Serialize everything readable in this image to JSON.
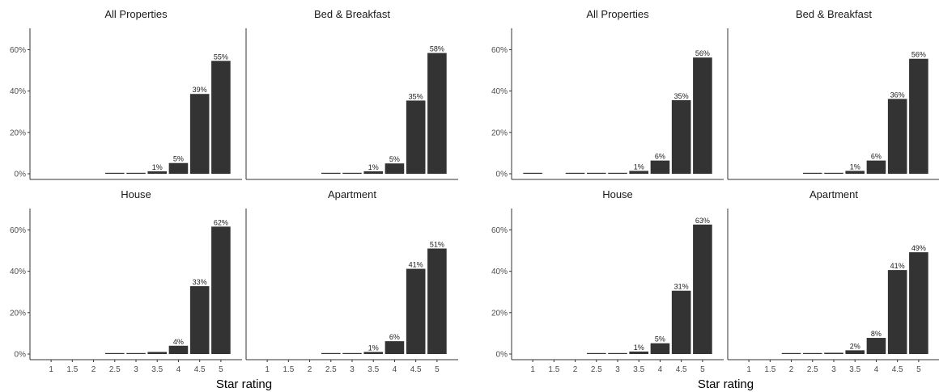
{
  "chart_data": [
    {
      "type": "bar",
      "xlabel": "Star rating",
      "ylim": [
        0,
        0.68
      ],
      "yticks": [
        "0%",
        "20%",
        "40%",
        "60%"
      ],
      "categories": [
        "1",
        "1.5",
        "2",
        "2.5",
        "3",
        "3.5",
        "4",
        "4.5",
        "5"
      ],
      "bar_color": "#333333",
      "panels": [
        {
          "title": "All Properties",
          "values": [
            null,
            null,
            null,
            0.002,
            0.002,
            0.012,
            0.052,
            0.386,
            0.546
          ],
          "labels": [
            "",
            "",
            "",
            "",
            "",
            "1%",
            "5%",
            "39%",
            "55%"
          ]
        },
        {
          "title": "Bed & Breakfast",
          "values": [
            null,
            null,
            null,
            0.002,
            0.002,
            0.012,
            0.05,
            0.354,
            0.584
          ],
          "labels": [
            "",
            "",
            "",
            "",
            "",
            "1%",
            "5%",
            "35%",
            "58%"
          ]
        },
        {
          "title": "House",
          "values": [
            null,
            null,
            null,
            0.002,
            0.002,
            0.01,
            0.04,
            0.328,
            0.616
          ],
          "labels": [
            "",
            "",
            "",
            "",
            "",
            "",
            "4%",
            "33%",
            "62%"
          ]
        },
        {
          "title": "Apartment",
          "values": [
            null,
            null,
            null,
            0.002,
            0.002,
            0.01,
            0.062,
            0.412,
            0.51
          ],
          "labels": [
            "",
            "",
            "",
            "",
            "",
            "1%",
            "6%",
            "41%",
            "51%"
          ]
        }
      ]
    },
    {
      "type": "bar",
      "xlabel": "Star rating",
      "ylim": [
        0,
        0.68
      ],
      "yticks": [
        "0%",
        "20%",
        "40%",
        "60%"
      ],
      "categories": [
        "1",
        "1.5",
        "2",
        "2.5",
        "3",
        "3.5",
        "4",
        "4.5",
        "5"
      ],
      "bar_color": "#333333",
      "panels": [
        {
          "title": "All Properties",
          "values": [
            0.002,
            null,
            0.002,
            0.002,
            0.004,
            0.014,
            0.064,
            0.356,
            0.562
          ],
          "labels": [
            "",
            "",
            "",
            "",
            "",
            "1%",
            "6%",
            "35%",
            "56%"
          ]
        },
        {
          "title": "Bed & Breakfast",
          "values": [
            null,
            null,
            null,
            0.002,
            0.004,
            0.014,
            0.064,
            0.362,
            0.556
          ],
          "labels": [
            "",
            "",
            "",
            "",
            "",
            "1%",
            "6%",
            "36%",
            "56%"
          ]
        },
        {
          "title": "House",
          "values": [
            null,
            null,
            null,
            0.002,
            0.002,
            0.012,
            0.052,
            0.306,
            0.626
          ],
          "labels": [
            "",
            "",
            "",
            "",
            "",
            "1%",
            "5%",
            "31%",
            "63%"
          ]
        },
        {
          "title": "Apartment",
          "values": [
            null,
            null,
            0.002,
            0.002,
            0.006,
            0.018,
            0.078,
            0.406,
            0.492
          ],
          "labels": [
            "",
            "",
            "",
            "",
            "",
            "2%",
            "8%",
            "41%",
            "49%"
          ]
        }
      ]
    }
  ]
}
